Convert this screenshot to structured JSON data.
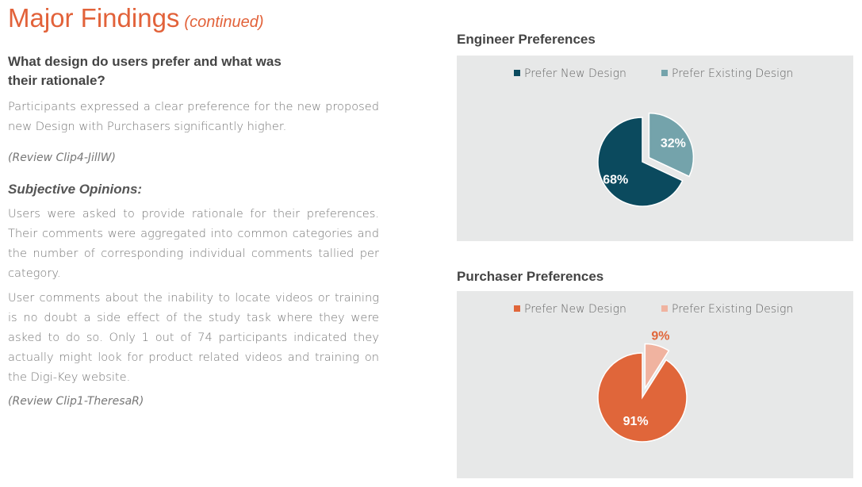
{
  "header": {
    "title": "Major Findings",
    "title_suffix": "(continued)"
  },
  "content": {
    "question": "What design do users prefer and what was their rationale?",
    "paragraph1": "Participants expressed a clear preference for the new proposed new Design with Purchasers significantly higher.",
    "ref1": "(Review Clip4-JillW)",
    "subheading": "Subjective Opinions:",
    "paragraph2": "Users were asked to provide rationale for their preferences. Their comments were aggregated into common categories and the number of corresponding individual comments tallied per category.",
    "paragraph3": "User comments about the inability to locate videos or training is no doubt a side effect of the study task where they were asked to do so. Only 1 out of 74 participants indicated they actually might look for product related videos and training on the Digi-Key website.",
    "ref2": "(Review Clip1-TheresaR)"
  },
  "chart_data": [
    {
      "type": "pie",
      "title": "Engineer Preferences",
      "categories": [
        "Prefer New Design",
        "Prefer Existing Design"
      ],
      "values": [
        68,
        32
      ],
      "labels": [
        "68%",
        "32%"
      ],
      "colors": [
        "#0b4a5e",
        "#74a3ab"
      ],
      "label_colors": [
        "#ffffff",
        "#ffffff"
      ],
      "exploded": "Prefer Existing Design",
      "legend": "top"
    },
    {
      "type": "pie",
      "title": "Purchaser Preferences",
      "categories": [
        "Prefer New Design",
        "Prefer Existing Design"
      ],
      "values": [
        91,
        9
      ],
      "labels": [
        "91%",
        "9%"
      ],
      "colors": [
        "#e0663a",
        "#f0b3a0"
      ],
      "label_colors": [
        "#ffffff",
        "#e0663a"
      ],
      "exploded": "Prefer Existing Design",
      "legend": "top"
    }
  ]
}
